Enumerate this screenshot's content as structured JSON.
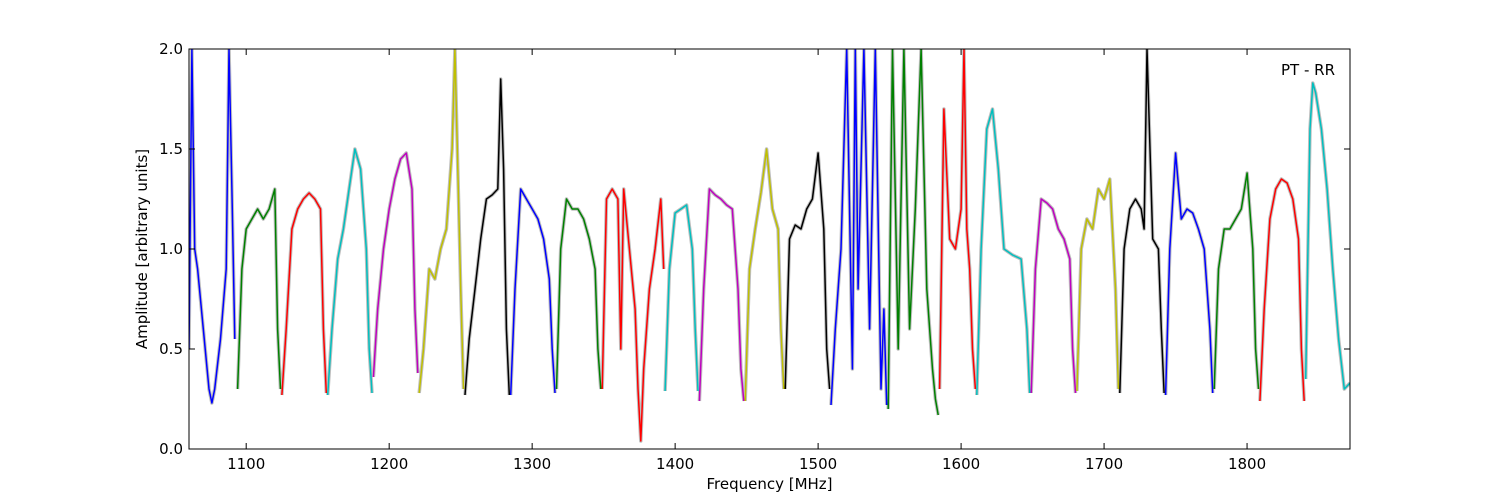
{
  "chart_data": {
    "type": "line",
    "title": "",
    "annotation": "PT - RR",
    "xlabel": "Frequency [MHz]",
    "ylabel": "Amplitude [arbitrary units]",
    "xlim": [
      1060,
      1872
    ],
    "ylim": [
      0.0,
      2.0
    ],
    "x_ticks": [
      1100,
      1200,
      1300,
      1400,
      1500,
      1600,
      1700,
      1800
    ],
    "x_tick_labels": [
      "1100",
      "1200",
      "1300",
      "1400",
      "1500",
      "1600",
      "1700",
      "1800"
    ],
    "y_ticks": [
      0.0,
      0.5,
      1.0,
      1.5,
      2.0
    ],
    "y_tick_labels": [
      "0.0",
      "0.5",
      "1.0",
      "1.5",
      "2.0"
    ],
    "grid": false,
    "background_series_color": "#bfbfbf",
    "band_colors": [
      "#0000ff",
      "#008000",
      "#ff0000",
      "#00bfbf",
      "#bf00bf",
      "#bfbf00",
      "#000000"
    ],
    "bands": [
      {
        "color": "#0000ff",
        "x": [
          1060,
          1062,
          1064,
          1066,
          1070,
          1074,
          1076,
          1078,
          1082,
          1086,
          1088,
          1090,
          1092
        ],
        "y": [
          0.5,
          2.0,
          1.0,
          0.9,
          0.6,
          0.3,
          0.23,
          0.3,
          0.55,
          0.9,
          2.0,
          1.3,
          0.55
        ]
      },
      {
        "color": "#008000",
        "x": [
          1094,
          1097,
          1100,
          1104,
          1108,
          1112,
          1116,
          1120,
          1122,
          1124
        ],
        "y": [
          0.3,
          0.9,
          1.1,
          1.15,
          1.2,
          1.15,
          1.2,
          1.3,
          0.6,
          0.3
        ]
      },
      {
        "color": "#ff0000",
        "x": [
          1125,
          1128,
          1132,
          1136,
          1140,
          1144,
          1148,
          1152,
          1154,
          1156
        ],
        "y": [
          0.27,
          0.6,
          1.1,
          1.2,
          1.25,
          1.28,
          1.25,
          1.2,
          0.6,
          0.28
        ]
      },
      {
        "color": "#00bfbf",
        "x": [
          1157,
          1160,
          1164,
          1168,
          1172,
          1176,
          1180,
          1184,
          1186,
          1188
        ],
        "y": [
          0.27,
          0.6,
          0.95,
          1.1,
          1.3,
          1.5,
          1.4,
          1.0,
          0.5,
          0.28
        ]
      },
      {
        "color": "#bf00bf",
        "x": [
          1189,
          1192,
          1196,
          1200,
          1204,
          1208,
          1212,
          1216,
          1218,
          1220
        ],
        "y": [
          0.36,
          0.7,
          1.0,
          1.2,
          1.35,
          1.45,
          1.48,
          1.3,
          0.7,
          0.38
        ]
      },
      {
        "color": "#bfbf00",
        "x": [
          1221,
          1224,
          1228,
          1232,
          1236,
          1240,
          1244,
          1246,
          1248,
          1250,
          1252
        ],
        "y": [
          0.28,
          0.5,
          0.9,
          0.85,
          1.0,
          1.1,
          1.5,
          2.0,
          1.4,
          0.8,
          0.3
        ]
      },
      {
        "color": "#000000",
        "x": [
          1253,
          1256,
          1260,
          1264,
          1268,
          1272,
          1276,
          1278,
          1280,
          1282,
          1284
        ],
        "y": [
          0.27,
          0.55,
          0.8,
          1.05,
          1.25,
          1.27,
          1.3,
          1.85,
          1.4,
          0.6,
          0.27
        ]
      },
      {
        "color": "#0000ff",
        "x": [
          1285,
          1288,
          1292,
          1296,
          1300,
          1304,
          1308,
          1312,
          1314,
          1316
        ],
        "y": [
          0.27,
          0.8,
          1.3,
          1.25,
          1.2,
          1.15,
          1.05,
          0.85,
          0.5,
          0.28
        ]
      },
      {
        "color": "#008000",
        "x": [
          1317,
          1320,
          1324,
          1328,
          1332,
          1336,
          1340,
          1344,
          1346,
          1348
        ],
        "y": [
          0.3,
          1.0,
          1.25,
          1.2,
          1.2,
          1.15,
          1.05,
          0.9,
          0.5,
          0.3
        ]
      },
      {
        "color": "#ff0000",
        "x": [
          1349,
          1352,
          1356,
          1360,
          1362,
          1364,
          1368,
          1372,
          1374,
          1376,
          1378,
          1382,
          1386,
          1390,
          1392
        ],
        "y": [
          0.3,
          1.25,
          1.3,
          1.25,
          0.5,
          1.3,
          1.0,
          0.7,
          0.3,
          0.04,
          0.4,
          0.8,
          1.0,
          1.25,
          0.9
        ]
      },
      {
        "color": "#00bfbf",
        "x": [
          1393,
          1396,
          1400,
          1404,
          1408,
          1412,
          1414,
          1416
        ],
        "y": [
          0.29,
          0.9,
          1.18,
          1.2,
          1.22,
          1.0,
          0.6,
          0.29
        ]
      },
      {
        "color": "#bf00bf",
        "x": [
          1417,
          1420,
          1424,
          1428,
          1432,
          1436,
          1440,
          1444,
          1446,
          1448
        ],
        "y": [
          0.24,
          0.8,
          1.3,
          1.27,
          1.25,
          1.22,
          1.2,
          0.8,
          0.4,
          0.24
        ]
      },
      {
        "color": "#bfbf00",
        "x": [
          1449,
          1452,
          1456,
          1460,
          1464,
          1468,
          1472,
          1474,
          1476
        ],
        "y": [
          0.24,
          0.9,
          1.1,
          1.28,
          1.5,
          1.2,
          1.1,
          0.6,
          0.3
        ]
      },
      {
        "color": "#000000",
        "x": [
          1477,
          1480,
          1484,
          1488,
          1492,
          1496,
          1500,
          1504,
          1506,
          1508
        ],
        "y": [
          0.3,
          1.05,
          1.12,
          1.1,
          1.2,
          1.25,
          1.48,
          1.1,
          0.5,
          0.3
        ]
      },
      {
        "color": "#0000ff",
        "x": [
          1509,
          1512,
          1516,
          1520,
          1524,
          1526,
          1528,
          1532,
          1536,
          1540,
          1544,
          1546,
          1548
        ],
        "y": [
          0.22,
          0.6,
          1.0,
          2.0,
          0.4,
          2.0,
          0.8,
          2.0,
          0.6,
          2.0,
          0.3,
          0.7,
          0.22
        ]
      },
      {
        "color": "#008000",
        "x": [
          1549,
          1552,
          1556,
          1560,
          1564,
          1568,
          1572,
          1576,
          1580,
          1582,
          1584
        ],
        "y": [
          0.2,
          2.0,
          0.5,
          2.0,
          0.6,
          1.2,
          2.0,
          0.8,
          0.4,
          0.25,
          0.17
        ]
      },
      {
        "color": "#ff0000",
        "x": [
          1585,
          1588,
          1592,
          1596,
          1600,
          1602,
          1604,
          1606,
          1608,
          1610
        ],
        "y": [
          0.3,
          1.7,
          1.05,
          1.0,
          1.2,
          2.0,
          1.1,
          0.9,
          0.5,
          0.3
        ]
      },
      {
        "color": "#00bfbf",
        "x": [
          1611,
          1614,
          1618,
          1622,
          1626,
          1630,
          1636,
          1642,
          1646,
          1648
        ],
        "y": [
          0.27,
          1.0,
          1.6,
          1.7,
          1.4,
          1.0,
          0.97,
          0.95,
          0.6,
          0.28
        ]
      },
      {
        "color": "#bf00bf",
        "x": [
          1649,
          1652,
          1656,
          1660,
          1664,
          1668,
          1672,
          1676,
          1678,
          1680
        ],
        "y": [
          0.28,
          0.9,
          1.25,
          1.23,
          1.2,
          1.1,
          1.05,
          0.95,
          0.5,
          0.28
        ]
      },
      {
        "color": "#bfbf00",
        "x": [
          1681,
          1684,
          1688,
          1692,
          1696,
          1700,
          1704,
          1708,
          1710
        ],
        "y": [
          0.29,
          1.0,
          1.15,
          1.1,
          1.3,
          1.25,
          1.35,
          0.8,
          0.3
        ]
      },
      {
        "color": "#000000",
        "x": [
          1711,
          1714,
          1718,
          1722,
          1726,
          1728,
          1730,
          1734,
          1738,
          1740,
          1742
        ],
        "y": [
          0.28,
          1.0,
          1.2,
          1.25,
          1.2,
          1.1,
          2.0,
          1.05,
          1.0,
          0.6,
          0.28
        ]
      },
      {
        "color": "#0000ff",
        "x": [
          1743,
          1746,
          1750,
          1754,
          1758,
          1762,
          1766,
          1770,
          1774,
          1776
        ],
        "y": [
          0.27,
          1.0,
          1.48,
          1.15,
          1.2,
          1.18,
          1.1,
          1.0,
          0.6,
          0.28
        ]
      },
      {
        "color": "#008000",
        "x": [
          1777,
          1780,
          1784,
          1788,
          1792,
          1796,
          1800,
          1804,
          1806,
          1808
        ],
        "y": [
          0.3,
          0.9,
          1.1,
          1.1,
          1.15,
          1.2,
          1.38,
          1.0,
          0.5,
          0.3
        ]
      },
      {
        "color": "#ff0000",
        "x": [
          1809,
          1812,
          1816,
          1820,
          1824,
          1828,
          1832,
          1836,
          1838,
          1840
        ],
        "y": [
          0.24,
          0.7,
          1.15,
          1.3,
          1.35,
          1.33,
          1.25,
          1.05,
          0.5,
          0.24
        ]
      },
      {
        "color": "#00bfbf",
        "x": [
          1841,
          1844,
          1846,
          1848,
          1852,
          1856,
          1860,
          1864,
          1868,
          1872
        ],
        "y": [
          0.35,
          1.6,
          1.83,
          1.78,
          1.6,
          1.3,
          0.9,
          0.55,
          0.3,
          0.33
        ]
      }
    ]
  }
}
